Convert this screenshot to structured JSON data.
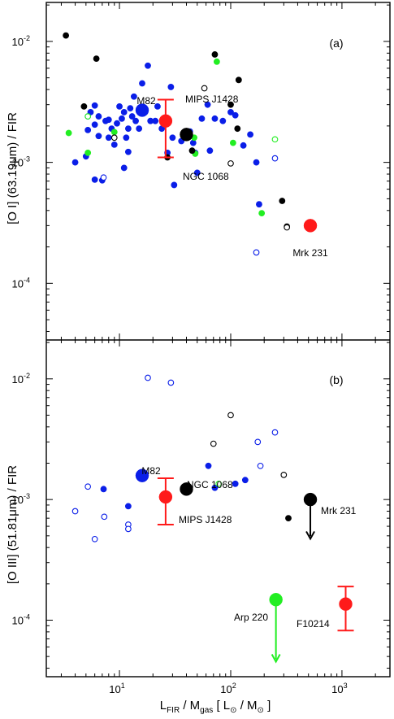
{
  "chart_data": [
    {
      "type": "scatter",
      "panel_tag": "(a)",
      "ylabel": "[O I] (63.19μm) / FIR",
      "xscale": "log",
      "yscale": "log",
      "xlim": [
        2.2,
        2700
      ],
      "ylim": [
        3.4e-05,
        0.021
      ],
      "y_tick_labels": [
        {
          "value": 0.0001,
          "base": "10",
          "exp": "-4"
        },
        {
          "value": 0.001,
          "base": "10",
          "exp": "-3"
        },
        {
          "value": 0.01,
          "base": "10",
          "exp": "-2"
        }
      ],
      "grid": false,
      "series": [
        {
          "color": "#0a1ee8",
          "marker": "filled-circle",
          "points": [
            [
              5,
              0.00112
            ],
            [
              4,
              0.001
            ],
            [
              5.2,
              0.00185
            ],
            [
              5.5,
              0.0026
            ],
            [
              6,
              0.00295
            ],
            [
              6.5,
              0.0024
            ],
            [
              6,
              0.00205
            ],
            [
              6.5,
              0.00165
            ],
            [
              6,
              0.00072
            ],
            [
              7,
              0.00071
            ],
            [
              7.5,
              0.0022
            ],
            [
              8,
              0.00225
            ],
            [
              8.5,
              0.0019
            ],
            [
              8,
              0.0016
            ],
            [
              9,
              0.0014
            ],
            [
              9.5,
              0.0021
            ],
            [
              10,
              0.0029
            ],
            [
              10.5,
              0.0023
            ],
            [
              11,
              0.0026
            ],
            [
              11,
              0.0009
            ],
            [
              11.5,
              0.0016
            ],
            [
              12,
              0.0019
            ],
            [
              12.5,
              0.0028
            ],
            [
              12,
              0.00122
            ],
            [
              13,
              0.0024
            ],
            [
              13.5,
              0.0035
            ],
            [
              14,
              0.0022
            ],
            [
              15,
              0.0019
            ],
            [
              16,
              0.0045
            ],
            [
              17,
              0.0026
            ],
            [
              18,
              0.0063
            ],
            [
              19,
              0.0022
            ],
            [
              21,
              0.0022
            ],
            [
              22,
              0.0029
            ],
            [
              24,
              0.0019
            ],
            [
              27,
              0.0012
            ],
            [
              29,
              0.0042
            ],
            [
              30,
              0.0016
            ],
            [
              31,
              0.00065
            ],
            [
              36,
              0.0015
            ],
            [
              43,
              0.0018
            ],
            [
              46,
              0.00145
            ],
            [
              48,
              0.0012
            ],
            [
              50,
              0.00082
            ],
            [
              55,
              0.0023
            ],
            [
              62,
              0.003
            ],
            [
              65,
              0.00125
            ],
            [
              72,
              0.0023
            ],
            [
              85,
              0.0022
            ],
            [
              100,
              0.0026
            ],
            [
              110,
              0.00245
            ],
            [
              130,
              0.00138
            ],
            [
              150,
              0.0017
            ],
            [
              170,
              0.001
            ],
            [
              180,
              0.00045
            ]
          ]
        },
        {
          "color": "#0a1ee8",
          "marker": "open-circle",
          "points": [
            [
              5.2,
              0.0024
            ],
            [
              7.2,
              0.00075
            ],
            [
              250,
              0.00108
            ],
            [
              170,
              0.00018
            ]
          ]
        },
        {
          "color": "#22ee22",
          "marker": "filled-circle",
          "points": [
            [
              3.5,
              0.00175
            ],
            [
              5.2,
              0.0012
            ],
            [
              9,
              0.00178
            ],
            [
              47,
              0.0016
            ],
            [
              48,
              0.00118
            ],
            [
              75,
              0.0068
            ],
            [
              105,
              0.00145
            ],
            [
              190,
              0.00038
            ]
          ]
        },
        {
          "color": "#22ee22",
          "marker": "open-circle",
          "points": [
            [
              5.2,
              0.0024
            ],
            [
              250,
              0.00155
            ]
          ]
        },
        {
          "color": "#000000",
          "marker": "filled-circle",
          "points": [
            [
              3.3,
              0.0112
            ],
            [
              4.8,
              0.0029
            ],
            [
              6.2,
              0.0072
            ],
            [
              27,
              0.0011
            ],
            [
              72,
              0.0078
            ],
            [
              45,
              0.00125
            ],
            [
              100,
              0.003
            ],
            [
              118,
              0.0048
            ],
            [
              115,
              0.0019
            ],
            [
              290,
              0.00048
            ]
          ]
        },
        {
          "color": "#000000",
          "marker": "open-circle",
          "points": [
            [
              9,
              0.0016
            ],
            [
              58,
              0.0041
            ],
            [
              100,
              0.00098
            ],
            [
              320,
              0.000295
            ],
            [
              320,
              0.00029
            ]
          ]
        }
      ],
      "highlights": [
        {
          "label": "M82",
          "x": 16,
          "y": 0.0027,
          "color": "#0a1ee8",
          "marker": "filled-circle"
        },
        {
          "label": "MIPS J1428",
          "x": 26,
          "y": 0.0022,
          "color": "#ff1a1a",
          "marker": "filled-circle",
          "err_low": 0.0011,
          "err_high": 0.0033
        },
        {
          "label": "NGC 1068",
          "x": 40,
          "y": 0.0017,
          "color": "#000000",
          "marker": "filled-circle"
        },
        {
          "label": "Mrk 231",
          "x": 520,
          "y": 0.0003,
          "color": "#ff1a1a",
          "marker": "filled-circle"
        }
      ]
    },
    {
      "type": "scatter",
      "panel_tag": "(b)",
      "ylabel": "[O III] (51.81μm) / FIR",
      "xlabel": {
        "main": "L",
        "sub1": "FIR",
        "mid": " / M",
        "sub2": "gas",
        "tail": " [ L",
        "sun": "⊙",
        "mid2": " / M",
        "sun2": "⊙",
        "end": " ]"
      },
      "xscale": "log",
      "yscale": "log",
      "xlim": [
        2.2,
        2700
      ],
      "ylim": [
        3.4e-05,
        0.021
      ],
      "x_tick_labels": [
        {
          "value": 10,
          "base": "10",
          "exp": "1"
        },
        {
          "value": 100,
          "base": "10",
          "exp": "2"
        },
        {
          "value": 1000,
          "base": "10",
          "exp": "3"
        }
      ],
      "y_tick_labels": [
        {
          "value": 0.0001,
          "base": "10",
          "exp": "-4"
        },
        {
          "value": 0.001,
          "base": "10",
          "exp": "-3"
        },
        {
          "value": 0.01,
          "base": "10",
          "exp": "-2"
        }
      ],
      "grid": false,
      "series": [
        {
          "color": "#0a1ee8",
          "marker": "filled-circle",
          "points": [
            [
              7.2,
              0.00122
            ],
            [
              12,
              0.00088
            ],
            [
              63,
              0.0019
            ],
            [
              72,
              0.00125
            ],
            [
              110,
              0.00135
            ],
            [
              135,
              0.00145
            ]
          ]
        },
        {
          "color": "#0a1ee8",
          "marker": "open-circle",
          "points": [
            [
              4,
              0.0008
            ],
            [
              5.2,
              0.00128
            ],
            [
              6,
              0.00047
            ],
            [
              7.3,
              0.00072
            ],
            [
              12,
              0.00062
            ],
            [
              12,
              0.00057
            ],
            [
              18,
              0.0102
            ],
            [
              29,
              0.0093
            ],
            [
              175,
              0.003
            ],
            [
              185,
              0.0019
            ],
            [
              250,
              0.0036
            ]
          ]
        },
        {
          "color": "#22ee22",
          "marker": "open-circle",
          "points": [
            [
              78,
              0.00135
            ]
          ]
        },
        {
          "color": "#000000",
          "marker": "filled-circle",
          "points": [
            [
              330,
              0.0007
            ]
          ]
        },
        {
          "color": "#000000",
          "marker": "open-circle",
          "points": [
            [
              70,
              0.0029
            ],
            [
              100,
              0.005
            ],
            [
              300,
              0.0016
            ]
          ]
        }
      ],
      "highlights": [
        {
          "label": "M82",
          "x": 16,
          "y": 0.00158,
          "color": "#0a1ee8",
          "marker": "filled-circle"
        },
        {
          "label": "NGC 1068",
          "x": 40,
          "y": 0.00122,
          "color": "#000000",
          "marker": "filled-circle"
        },
        {
          "label": "MIPS J1428",
          "x": 26,
          "y": 0.00105,
          "color": "#ff1a1a",
          "marker": "filled-circle",
          "err_low": 0.00062,
          "err_high": 0.0015
        },
        {
          "label": "Mrk 231",
          "x": 520,
          "y": 0.001,
          "color": "#000000",
          "marker": "filled-circle",
          "upper_limit_to": 0.00048
        },
        {
          "label": "Arp 220",
          "x": 255,
          "y": 0.000148,
          "color": "#22ee22",
          "marker": "filled-circle",
          "upper_limit_to": 4.6e-05
        },
        {
          "label": "F10214",
          "x": 1080,
          "y": 0.000136,
          "color": "#ff1a1a",
          "marker": "filled-circle",
          "err_low": 8.2e-05,
          "err_high": 0.00019
        }
      ]
    }
  ]
}
